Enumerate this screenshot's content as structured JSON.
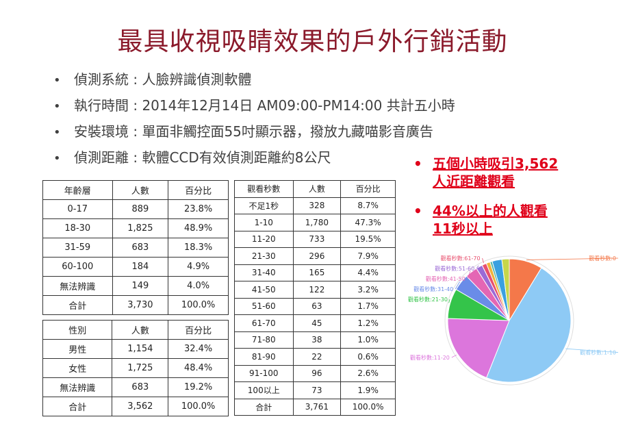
{
  "title": "最具收視吸睛效果的戶外行銷活動",
  "bullets": [
    "偵測系統 : 人臉辨識偵測軟體",
    "執行時間 : 2014年12月14日  AM09:00-PM14:00  共計五小時",
    "安裝環境 : 單面非觸控面55吋顯示器，撥放九藏喵影音廣告",
    "偵測距離 : 軟體CCD有效偵測距離約8公尺"
  ],
  "bullet_symbol": "•",
  "highlights": [
    "五個小時吸引3,562人近距離觀看",
    "44%以上的人觀看11秒以上"
  ],
  "highlight_lines": [
    [
      "五個小時吸引3,562",
      "人近距離觀看"
    ],
    [
      "44%以上的人觀看",
      "11秒以上"
    ]
  ],
  "highlight_color": "#e0001a",
  "title_color": "#8b1a2b",
  "age_table": {
    "headers": [
      "年齡層",
      "人數",
      "百分比"
    ],
    "rows": [
      [
        "0-17",
        "889",
        "23.8%"
      ],
      [
        "18-30",
        "1,825",
        "48.9%"
      ],
      [
        "31-59",
        "683",
        "18.3%"
      ],
      [
        "60-100",
        "184",
        "4.9%"
      ],
      [
        "無法辨識",
        "149",
        "4.0%"
      ],
      [
        "合計",
        "3,730",
        "100.0%"
      ]
    ]
  },
  "gender_table": {
    "headers": [
      "性別",
      "人數",
      "百分比"
    ],
    "rows": [
      [
        "男性",
        "1,154",
        "32.4%"
      ],
      [
        "女性",
        "1,725",
        "48.4%"
      ],
      [
        "無法辨識",
        "683",
        "19.2%"
      ],
      [
        "合計",
        "3,562",
        "100.0%"
      ]
    ]
  },
  "watch_table": {
    "headers": [
      "觀看秒數",
      "人數",
      "百分比"
    ],
    "rows": [
      [
        "不足1秒",
        "328",
        "8.7%"
      ],
      [
        "1-10",
        "1,780",
        "47.3%"
      ],
      [
        "11-20",
        "733",
        "19.5%"
      ],
      [
        "21-30",
        "296",
        "7.9%"
      ],
      [
        "31-40",
        "165",
        "4.4%"
      ],
      [
        "41-50",
        "122",
        "3.2%"
      ],
      [
        "51-60",
        "63",
        "1.7%"
      ],
      [
        "61-70",
        "45",
        "1.2%"
      ],
      [
        "71-80",
        "38",
        "1.0%"
      ],
      [
        "81-90",
        "22",
        "0.6%"
      ],
      [
        "91-100",
        "96",
        "2.6%"
      ],
      [
        "100以上",
        "73",
        "1.9%"
      ],
      [
        "合計",
        "3,761",
        "100.0%"
      ]
    ]
  },
  "chart_data": {
    "type": "pie",
    "title": "",
    "slices": [
      {
        "label": "觀看秒數:0",
        "value": 328,
        "color": "#f4784a"
      },
      {
        "label": "觀看秒數:1-10",
        "value": 1780,
        "color": "#8ecaf5"
      },
      {
        "label": "觀看秒數:11-20",
        "value": 733,
        "color": "#dc76dc"
      },
      {
        "label": "觀看秒數:21-30",
        "value": 296,
        "color": "#34c44a"
      },
      {
        "label": "觀看秒數:31-40",
        "value": 165,
        "color": "#6a8ce8"
      },
      {
        "label": "觀看秒數:41-50",
        "value": 122,
        "color": "#e466b4"
      },
      {
        "label": "觀看秒數:51-60",
        "value": 63,
        "color": "#9b6ad6"
      },
      {
        "label": "觀看秒數:61-70",
        "value": 45,
        "color": "#e8506e"
      },
      {
        "label": "",
        "value": 38,
        "color": "#f0b23c"
      },
      {
        "label": "",
        "value": 22,
        "color": "#52b6a8"
      },
      {
        "label": "",
        "value": 96,
        "color": "#3aa0e0"
      },
      {
        "label": "",
        "value": 73,
        "color": "#c7d64a"
      }
    ]
  }
}
